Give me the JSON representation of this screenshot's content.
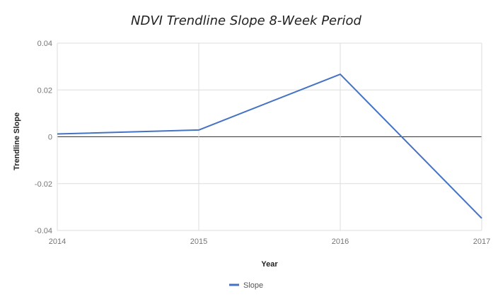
{
  "chart_data": {
    "type": "line",
    "title": "NDVI Trendline Slope 8-Week Period",
    "xlabel": "Year",
    "ylabel": "Trendline Slope",
    "x": [
      2014,
      2015,
      2016,
      2017
    ],
    "x_tick_labels": [
      "2014",
      "2015",
      "2016",
      "2017"
    ],
    "xlim": [
      2014,
      2017
    ],
    "ylim": [
      -0.04,
      0.04
    ],
    "y_ticks": [
      0.04,
      0.02,
      0,
      -0.02,
      -0.04
    ],
    "y_tick_labels": [
      "0.04",
      "0.02",
      "0",
      "-0.02",
      "-0.04"
    ],
    "grid": true,
    "zero_line": true,
    "legend_position": "bottom",
    "series": [
      {
        "name": "Slope",
        "color": "#4472c4",
        "values": [
          0.0012,
          0.0029,
          0.0267,
          -0.0348
        ]
      }
    ]
  }
}
